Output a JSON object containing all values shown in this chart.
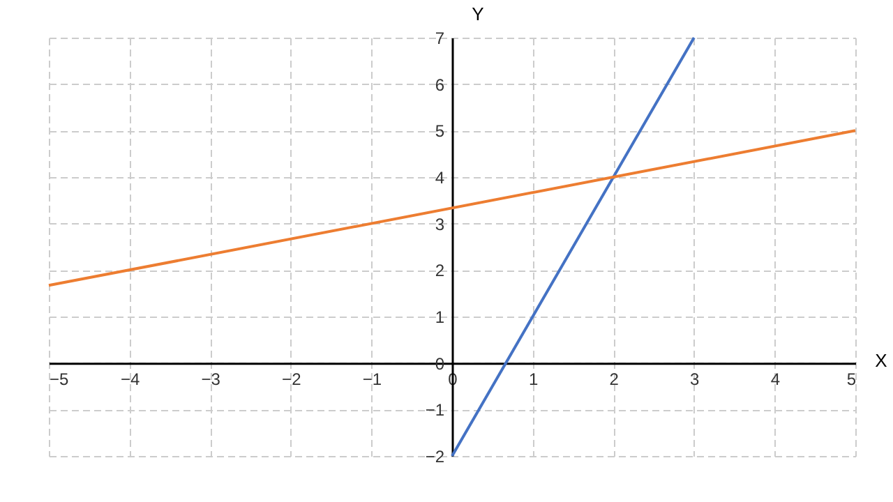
{
  "chart_data": {
    "type": "line",
    "xlabel": "X",
    "ylabel": "Y",
    "xlim": [
      -5,
      5
    ],
    "ylim": [
      -2,
      7
    ],
    "xticks": [
      -5,
      -4,
      -3,
      -2,
      -1,
      0,
      1,
      2,
      3,
      4,
      5
    ],
    "yticks": [
      -2,
      -1,
      0,
      1,
      2,
      3,
      4,
      5,
      6,
      7
    ],
    "grid": true,
    "legend": false,
    "marker": "none",
    "line_style": "solid",
    "series": [
      {
        "color": "#4472c4",
        "x": [
          0,
          3
        ],
        "values": [
          -2,
          7
        ]
      },
      {
        "color": "#ed7d31",
        "x": [
          -5,
          5
        ],
        "values": [
          1.67,
          5
        ]
      }
    ]
  }
}
